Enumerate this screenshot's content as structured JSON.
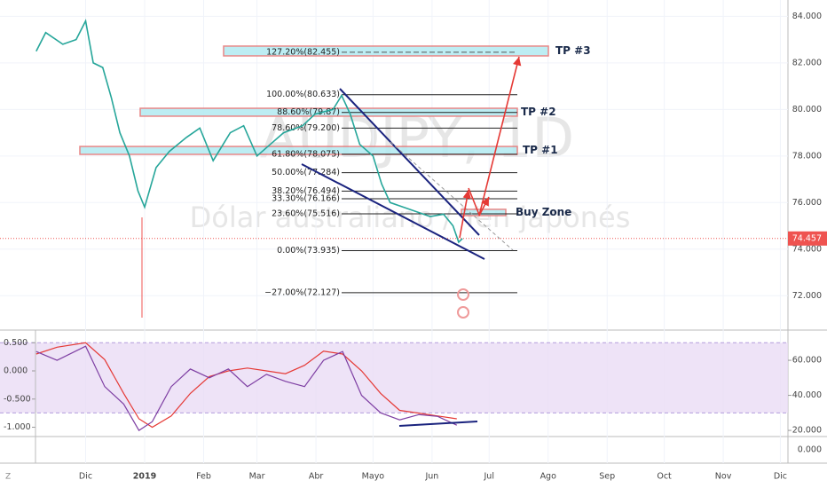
{
  "chart_data": {
    "type": "line",
    "watermark": "AUDJPY, 1D",
    "watermark_sub": "Dólar australiano / Yen japonés",
    "xlim": [
      -45,
      369
    ],
    "xticks": [
      {
        "value": 0,
        "label": "Dic"
      },
      {
        "value": 31,
        "label": "2019"
      },
      {
        "value": 62,
        "label": "Feb"
      },
      {
        "value": 90,
        "label": "Mar"
      },
      {
        "value": 121,
        "label": "Abr"
      },
      {
        "value": 151,
        "label": "Mayo"
      },
      {
        "value": 182,
        "label": "Jun"
      },
      {
        "value": 212,
        "label": "Jul"
      },
      {
        "value": 243,
        "label": "Ago"
      },
      {
        "value": 274,
        "label": "Sep"
      },
      {
        "value": 304,
        "label": "Oct"
      },
      {
        "value": 335,
        "label": "Nov"
      },
      {
        "value": 365,
        "label": "Dic"
      }
    ],
    "ylim": [
      70.6,
      84.7
    ],
    "yticks": [
      {
        "value": 84,
        "label": "84.000"
      },
      {
        "value": 82,
        "label": "82.000"
      },
      {
        "value": 80,
        "label": "80.000"
      },
      {
        "value": 78,
        "label": "78.000"
      },
      {
        "value": 76,
        "label": "76.000"
      },
      {
        "value": 74,
        "label": "74.000"
      },
      {
        "value": 72,
        "label": "72.000"
      }
    ],
    "last_price": {
      "value": 74.457,
      "label": "74.457"
    },
    "x": [
      -26,
      -21,
      -12,
      -5,
      0,
      4,
      9,
      13.5,
      18,
      23,
      27.5,
      31,
      37,
      44,
      53,
      60,
      67,
      76,
      83,
      90,
      97,
      104,
      114,
      120.5,
      130,
      134.5,
      139,
      144,
      151,
      155.5,
      160,
      167,
      174,
      181,
      188,
      193,
      196,
      198
    ],
    "series": [
      {
        "color": "#26a69a",
        "values": [
          82.5,
          83.3,
          82.8,
          83.0,
          83.8,
          82.0,
          81.8,
          80.5,
          79.0,
          78.0,
          76.5,
          75.8,
          77.5,
          78.2,
          78.8,
          79.2,
          77.8,
          79.0,
          79.3,
          78.0,
          78.5,
          79.0,
          79.3,
          79.8,
          80.0,
          80.6,
          79.8,
          78.5,
          78.0,
          76.8,
          76.0,
          75.8,
          75.6,
          75.4,
          75.5,
          75.0,
          74.3,
          74.457
        ]
      }
    ],
    "fib_levels": [
      {
        "value": 82.455,
        "label": "127.20%(82.455)"
      },
      {
        "value": 80.633,
        "label": "100.00%(80.633)"
      },
      {
        "value": 79.87,
        "label": "88.60%(79.87)"
      },
      {
        "value": 79.2,
        "label": "78.60%(79.200)"
      },
      {
        "value": 78.075,
        "label": "61.80%(78.075)"
      },
      {
        "value": 77.284,
        "label": "50.00%(77.284)"
      },
      {
        "value": 76.494,
        "label": "38.20%(76.494)"
      },
      {
        "value": 76.166,
        "label": "33.30%(76.166)"
      },
      {
        "value": 75.516,
        "label": "23.60%(75.516)"
      },
      {
        "value": 73.935,
        "label": "0.00%(73.935)"
      },
      {
        "value": 72.127,
        "label": "−27.00%(72.127)"
      }
    ],
    "zones": [
      {
        "text": "TP #3",
        "low": 82.3,
        "high": 82.72
      },
      {
        "text": "TP #2",
        "low": 79.71,
        "high": 80.05
      },
      {
        "text": "TP #1",
        "low": 78.07,
        "high": 78.41
      },
      {
        "text": "Buy Zone",
        "low": 75.44,
        "high": 75.71
      }
    ],
    "indicator": {
      "x": [
        -26,
        -15,
        0,
        10,
        20,
        28,
        35,
        45,
        55,
        65,
        75,
        85,
        95,
        105,
        115,
        125,
        135,
        145,
        155,
        165,
        175,
        185,
        195
      ],
      "ylim": [
        -1.165,
        0.63
      ],
      "yticks": [
        {
          "value": 0.5,
          "label": "0.500"
        },
        {
          "value": 0,
          "label": "0.000"
        },
        {
          "value": -0.5,
          "label": "-0.500"
        },
        {
          "value": -1,
          "label": "-1.000"
        }
      ],
      "y2lim": [
        16.5,
        74.2
      ],
      "y2ticks": [
        {
          "value": 60,
          "label": "60.000"
        },
        {
          "value": 40,
          "label": "40.000"
        },
        {
          "value": 20,
          "label": "20.000"
        }
      ],
      "band": [
        30,
        70
      ],
      "series": [
        {
          "color": "#e53935",
          "values": [
            0.3,
            0.42,
            0.5,
            0.2,
            -0.4,
            -0.85,
            -1.0,
            -0.8,
            -0.4,
            -0.1,
            0.0,
            0.05,
            0.0,
            -0.05,
            0.1,
            0.35,
            0.3,
            0.0,
            -0.4,
            -0.7,
            -0.75,
            -0.8,
            -0.85
          ]
        },
        {
          "color": "#7e3fa3",
          "axis": "y2",
          "values": [
            65,
            60,
            68,
            45,
            35,
            20,
            25,
            45,
            55,
            50,
            55,
            45,
            52,
            48,
            45,
            60,
            65,
            40,
            30,
            26,
            29,
            28,
            23
          ]
        }
      ]
    },
    "y3ticks": [
      {
        "value": 0,
        "label": "0.000"
      }
    ]
  }
}
